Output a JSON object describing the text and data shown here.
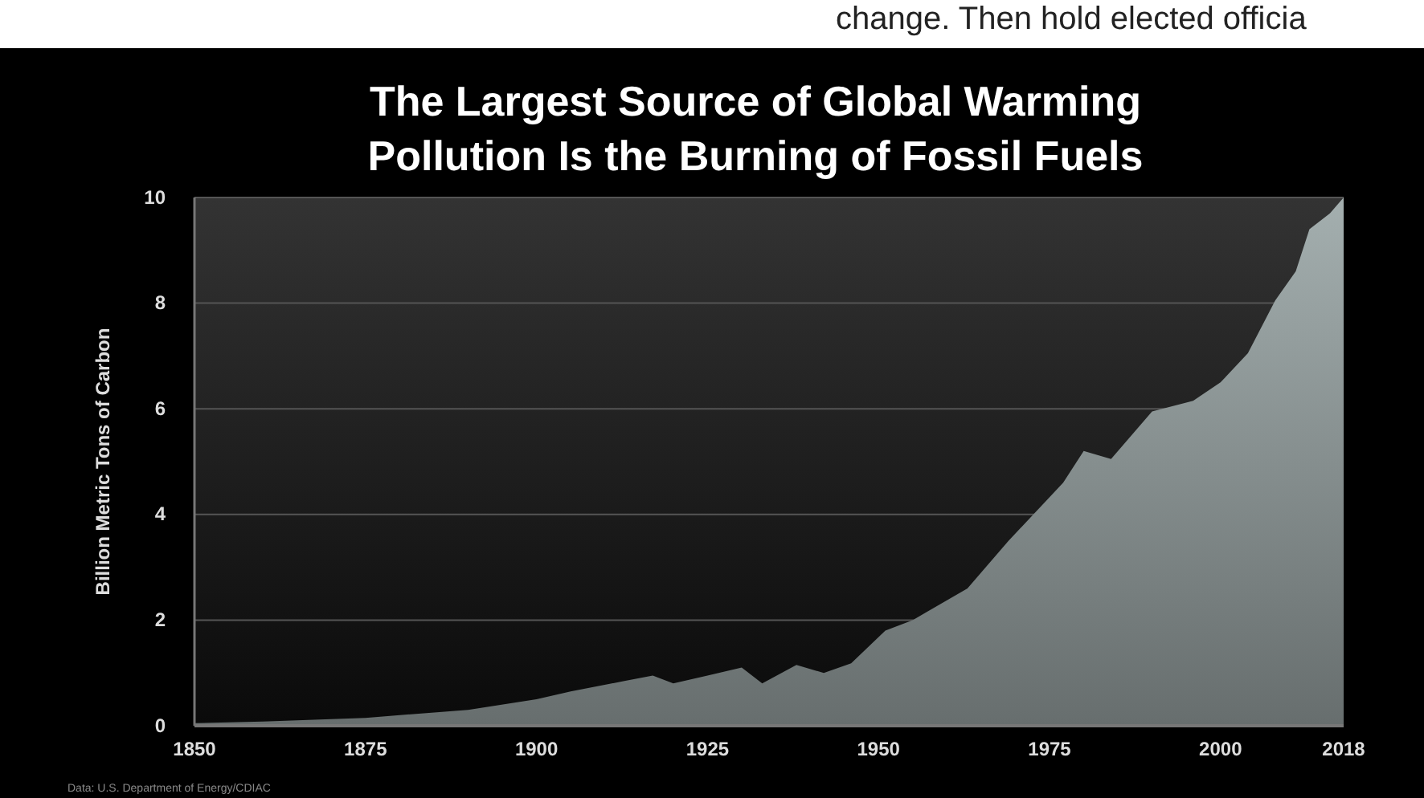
{
  "chart_data": {
    "type": "area",
    "title": "The Largest Source of Global Warming Pollution Is the Burning of Fossil Fuels",
    "ylabel": "Billion Metric Tons of Carbon",
    "annotations": [
      "Data: U.S. Department of Energy/CDIAC",
      "change. Then hold elected officia"
    ],
    "x": [
      1850,
      1860,
      1875,
      1890,
      1900,
      1905,
      1913,
      1917,
      1920,
      1925,
      1930,
      1933,
      1938,
      1942,
      1946,
      1951,
      1955,
      1963,
      1969,
      1977,
      1980,
      1984,
      1990,
      1996,
      2000,
      2004,
      2008,
      2011,
      2013,
      2016,
      2018
    ],
    "series": [
      {
        "color": "#8e9898",
        "values": [
          0.05,
          0.08,
          0.15,
          0.3,
          0.5,
          0.65,
          0.85,
          0.95,
          0.8,
          0.95,
          1.1,
          0.8,
          1.15,
          1.0,
          1.18,
          1.8,
          2.0,
          2.6,
          3.5,
          4.6,
          5.2,
          5.05,
          5.95,
          6.15,
          6.5,
          7.05,
          8.05,
          8.6,
          9.4,
          9.7,
          10
        ]
      }
    ],
    "xlim": [
      1850,
      2018
    ],
    "xticks": [
      1850,
      1875,
      1900,
      1925,
      1950,
      1975,
      2000,
      2018
    ],
    "ylim": [
      0,
      10
    ],
    "yticks": [
      0,
      2,
      4,
      6,
      8,
      10
    ],
    "grid": "y"
  }
}
